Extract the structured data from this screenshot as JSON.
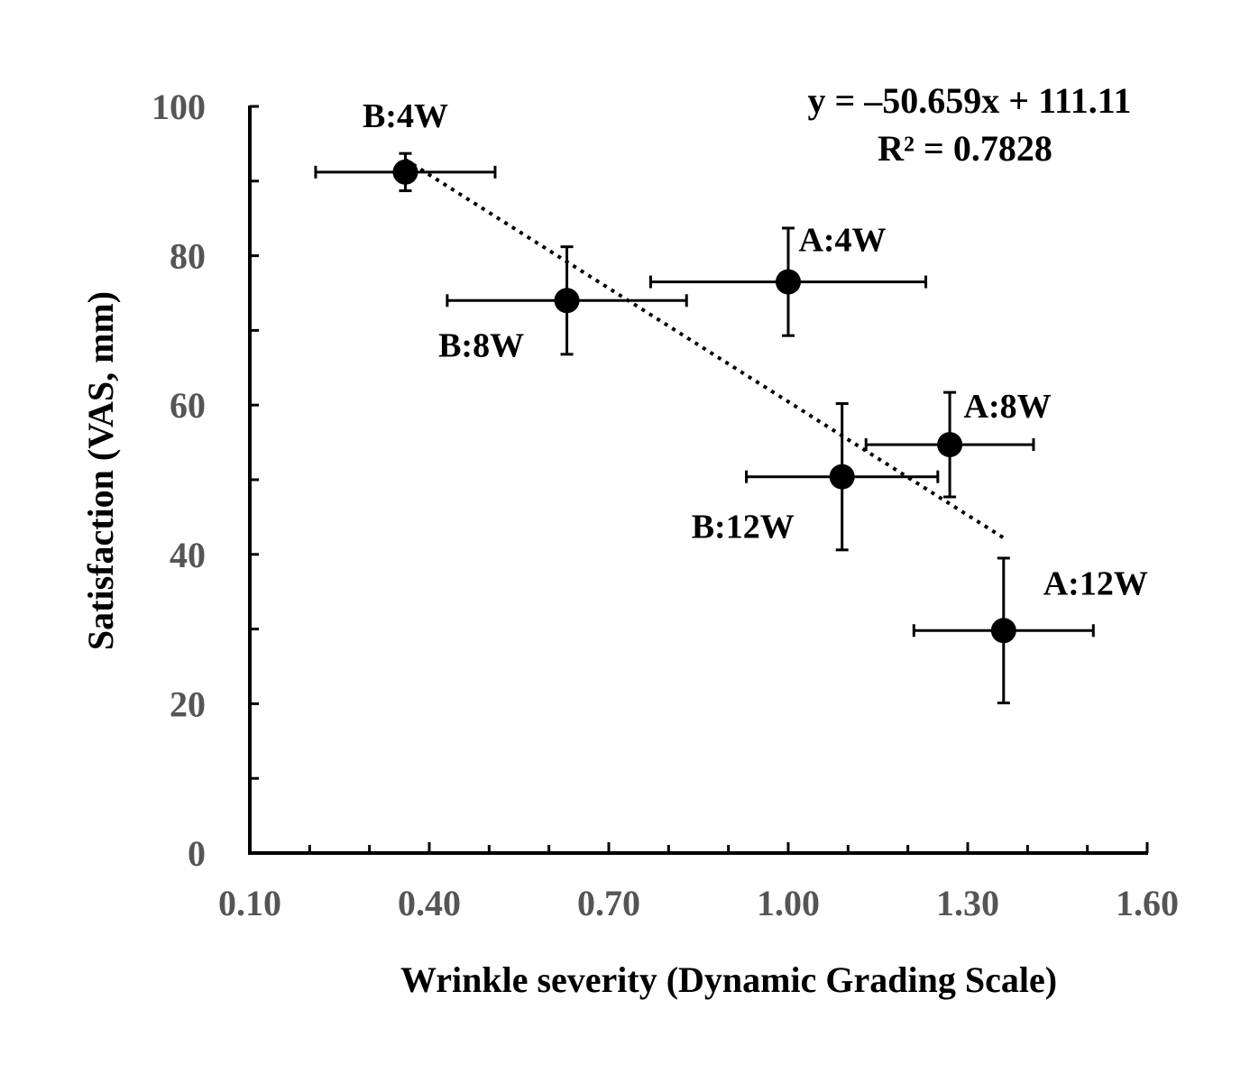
{
  "chart_data": {
    "type": "scatter",
    "title": "",
    "xlabel": "Wrinkle severity (Dynamic Grading Scale)",
    "ylabel": "Satisfaction (VAS, mm)",
    "xlim": [
      0.1,
      1.6
    ],
    "ylim": [
      0,
      100
    ],
    "x_ticks": [
      "0.10",
      "0.40",
      "0.70",
      "1.00",
      "1.30",
      "1.60"
    ],
    "y_ticks": [
      "0",
      "20",
      "40",
      "60",
      "80",
      "100"
    ],
    "grid": false,
    "legend": "none",
    "points": [
      {
        "label": "B:4W",
        "x": 0.36,
        "y": 91.2,
        "x_err": 0.15,
        "y_err": 2.5
      },
      {
        "label": "B:8W",
        "x": 0.63,
        "y": 74.0,
        "x_err": 0.2,
        "y_err": 7.2
      },
      {
        "label": "A:4W",
        "x": 1.0,
        "y": 76.5,
        "x_err": 0.23,
        "y_err": 7.2
      },
      {
        "label": "B:12W",
        "x": 1.09,
        "y": 50.4,
        "x_err": 0.16,
        "y_err": 9.8
      },
      {
        "label": "A:8W",
        "x": 1.27,
        "y": 54.7,
        "x_err": 0.14,
        "y_err": 7.0
      },
      {
        "label": "A:12W",
        "x": 1.36,
        "y": 29.8,
        "x_err": 0.15,
        "y_err": 9.7
      }
    ],
    "trendline": {
      "style": "dotted",
      "slope": -50.659,
      "intercept": 111.11,
      "x_range": [
        0.36,
        1.36
      ],
      "equation": "y = –50.659x + 111.11",
      "r_squared": "R² = 0.7828"
    },
    "colors": {
      "marker": "#000000",
      "tick_label": "#555555",
      "axis": "#000000"
    }
  }
}
